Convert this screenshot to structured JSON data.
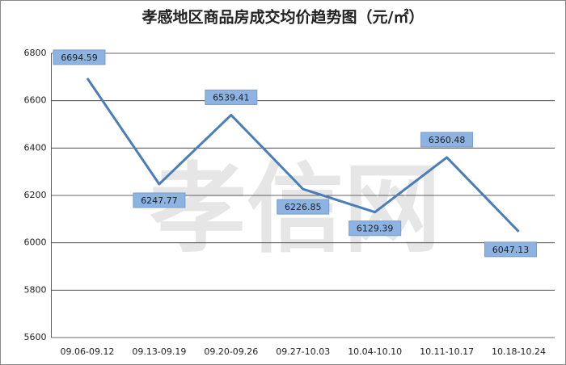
{
  "chart_data": {
    "type": "line",
    "title": "孝感地区商品房成交均价趋势图（元/㎡）",
    "watermark": "孝信网",
    "categories": [
      "09.06-09.12",
      "09.13-09.19",
      "09.20-09.26",
      "09.27-10.03",
      "10.04-10.10",
      "10.11-10.17",
      "10.18-10.24"
    ],
    "values": [
      6694.59,
      6247.77,
      6539.41,
      6226.85,
      6129.39,
      6360.48,
      6047.13
    ],
    "color": "#4a7ebb",
    "ylim": [
      5600,
      6800
    ],
    "yticks": [
      5600,
      5800,
      6000,
      6200,
      6400,
      6600,
      6800
    ],
    "grid": true
  }
}
